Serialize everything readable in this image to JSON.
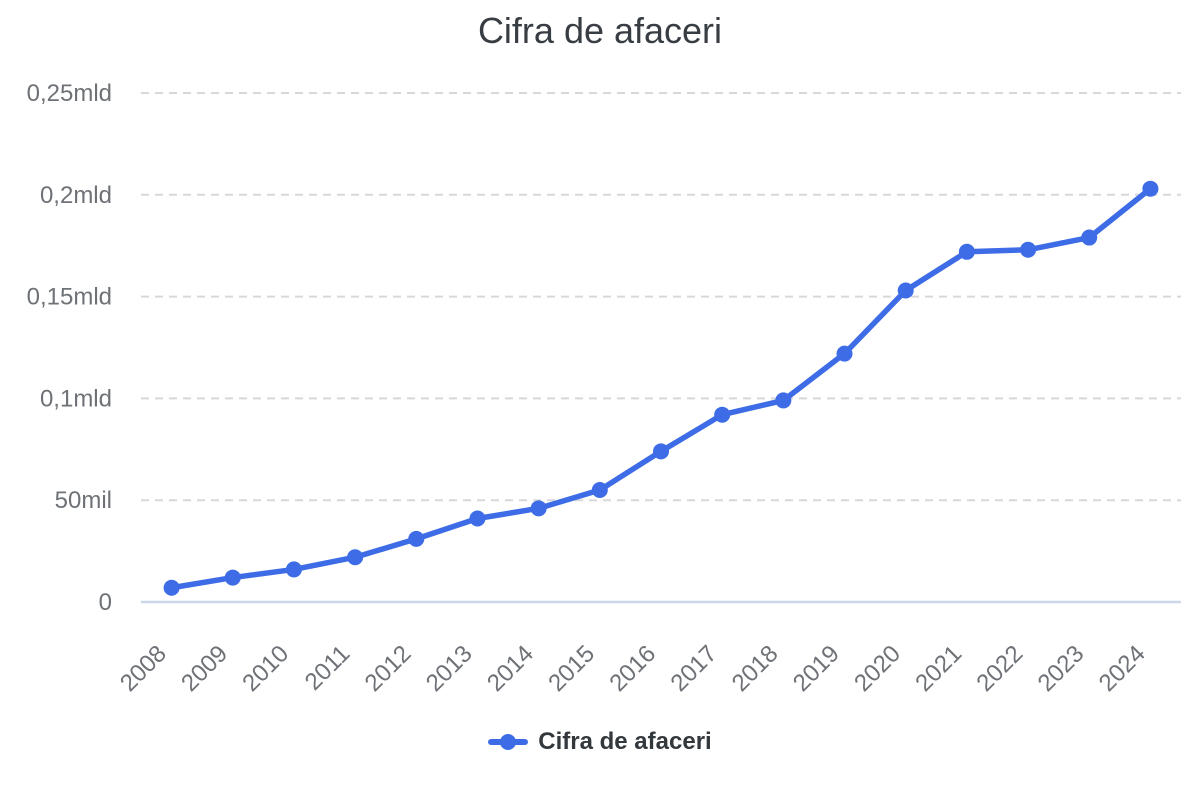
{
  "chart_data": {
    "type": "line",
    "title": "Cifra de afaceri",
    "categories": [
      "2008",
      "2009",
      "2010",
      "2011",
      "2012",
      "2013",
      "2014",
      "2015",
      "2016",
      "2017",
      "2018",
      "2019",
      "2020",
      "2021",
      "2022",
      "2023",
      "2024"
    ],
    "series": [
      {
        "name": "Cifra de afaceri",
        "values_mil": [
          7,
          12,
          16,
          22,
          31,
          41,
          46,
          55,
          74,
          92,
          99,
          122,
          153,
          172,
          173,
          179,
          203
        ]
      }
    ],
    "y_axis": {
      "min_mil": 0,
      "max_mil": 250,
      "tick_interval_mil": 50,
      "ticks": [
        {
          "value_mil": 0,
          "label": "0"
        },
        {
          "value_mil": 50,
          "label": "50mil"
        },
        {
          "value_mil": 100,
          "label": "0,1mld"
        },
        {
          "value_mil": 150,
          "label": "0,15mld"
        },
        {
          "value_mil": 200,
          "label": "0,2mld"
        },
        {
          "value_mil": 250,
          "label": "0,25mld"
        }
      ]
    },
    "x_axis": {
      "label_rotation_deg": -45
    },
    "legend": {
      "label": "Cifra de afaceri",
      "position": "bottom",
      "marker": "line-with-dot"
    },
    "grid": {
      "horizontal": "dashed",
      "vertical": "none"
    },
    "colors": {
      "line": "#3d6ce6",
      "axis_line": "#ccd6eb",
      "gridline": "#d8d8d8",
      "title_text": "#373d43",
      "axis_label_text": "#6e7277",
      "legend_text": "#33383d"
    }
  }
}
